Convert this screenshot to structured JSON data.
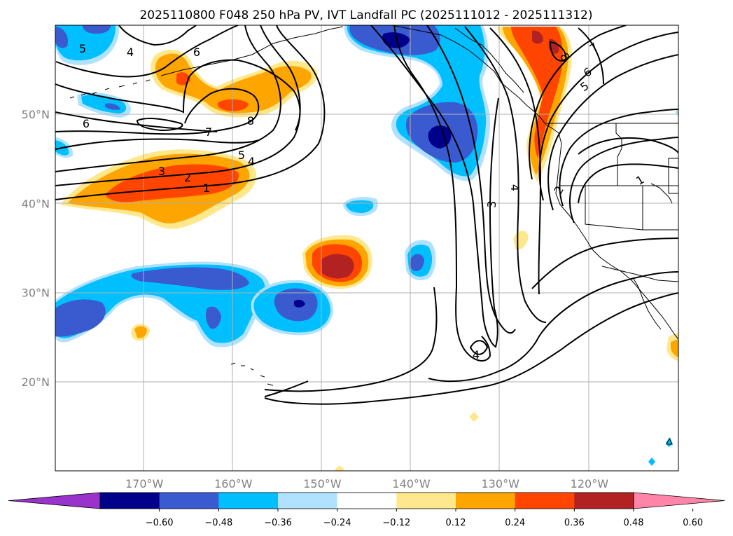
{
  "title": "2025110800 F048 250 hPa PV, IVT Landfall PC (2025111012 - 2025111312)",
  "map": {
    "projection": "lon-lat",
    "lon_range": [
      -180,
      -110
    ],
    "lat_range": [
      10,
      60
    ],
    "grid": true
  },
  "axes": {
    "lon_ticks": [
      {
        "value": -170,
        "label": "170°W"
      },
      {
        "value": -160,
        "label": "160°W"
      },
      {
        "value": -150,
        "label": "150°W"
      },
      {
        "value": -140,
        "label": "140°W"
      },
      {
        "value": -130,
        "label": "130°W"
      },
      {
        "value": -120,
        "label": "120°W"
      }
    ],
    "lat_ticks": [
      {
        "value": 20,
        "label": "20°N"
      },
      {
        "value": 30,
        "label": "30°N"
      },
      {
        "value": 40,
        "label": "40°N"
      },
      {
        "value": 50,
        "label": "50°N"
      }
    ]
  },
  "colorbar": {
    "levels": [
      "−0.60",
      "−0.48",
      "−0.36",
      "−0.24",
      "−0.12",
      "0.12",
      "0.24",
      "0.36",
      "0.48",
      "0.60"
    ],
    "colors": [
      "#9933cc",
      "#00008b",
      "#3a5bd0",
      "#00bfff",
      "#b0e2ff",
      "#ffffff",
      "#ffe88c",
      "#ffa500",
      "#ff4500",
      "#b22222",
      "#ff85a8"
    ],
    "extend": "both"
  },
  "contour_labels": [
    "5",
    "4",
    "6",
    "6",
    "8",
    "7",
    "5",
    "4",
    "3",
    "2",
    "1",
    "4",
    "3",
    "4",
    "8",
    "7",
    "6",
    "5",
    "2",
    "1"
  ],
  "colors": {
    "coast": "#000000",
    "grid": "#b0b0b0",
    "contour": "#000000"
  }
}
